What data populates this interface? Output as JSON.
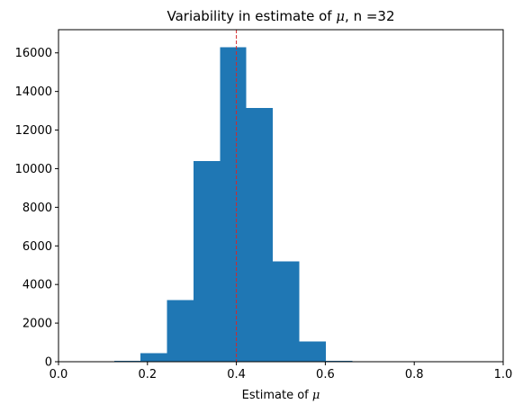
{
  "chart_data": {
    "type": "bar",
    "title": "Variability in estimate of ",
    "title_symbol": "μ",
    "title_suffix": ", n =32",
    "xlabel": "Estimate of ",
    "xlabel_symbol": "μ",
    "ylabel": "",
    "xlim": [
      0.0,
      1.0
    ],
    "ylim": [
      0,
      17200
    ],
    "xticks": [
      "0.0",
      "0.2",
      "0.4",
      "0.6",
      "0.8",
      "1.0"
    ],
    "yticks": [
      "0",
      "2000",
      "4000",
      "6000",
      "8000",
      "10000",
      "12000",
      "14000",
      "16000"
    ],
    "bin_edges": [
      0.125,
      0.1845,
      0.244,
      0.3035,
      0.363,
      0.4225,
      0.482,
      0.5415,
      0.601,
      0.6605
    ],
    "values": [
      40,
      450,
      3200,
      10400,
      16300,
      13150,
      5200,
      1050,
      40
    ],
    "vline": {
      "x": 0.4,
      "color": "#d62728",
      "style": "dashed"
    },
    "bar_color": "#1f77b4",
    "grid": false,
    "legend": "none"
  }
}
